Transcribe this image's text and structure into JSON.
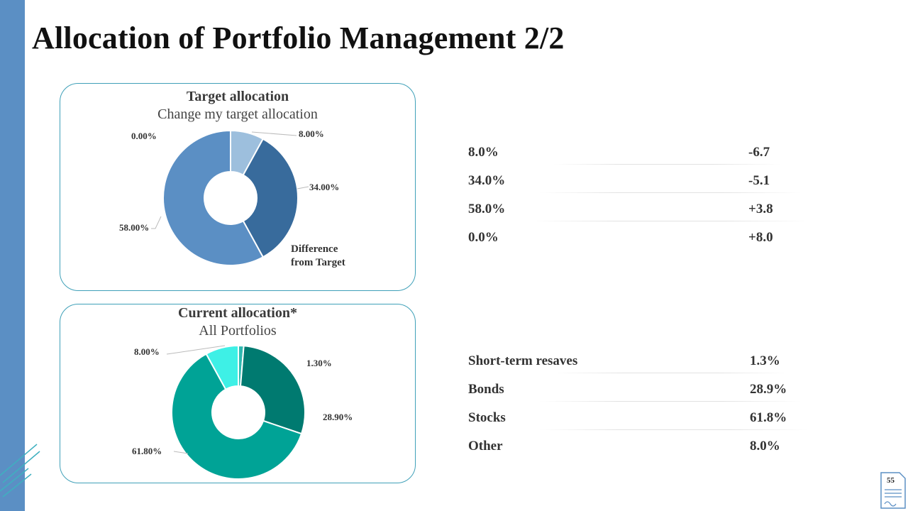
{
  "slide": {
    "title": "Allocation of Portfolio Management 2/2",
    "page_number": "55"
  },
  "colors": {
    "sidebar": "#5b8fc4",
    "card_border": "#3fa0b8",
    "target_slices": [
      "#9dbfdd",
      "#386b9c",
      "#5b8fc4",
      "#5b8fc4"
    ],
    "current_slices": [
      "#2fb8b0",
      "#007a70",
      "#00a396",
      "#3ef0e6"
    ]
  },
  "target_table": {
    "rows": [
      {
        "value": "8.0%",
        "diff": "-6.7"
      },
      {
        "value": "34.0%",
        "diff": "-5.1"
      },
      {
        "value": "58.0%",
        "diff": "+3.8"
      },
      {
        "value": "0.0%",
        "diff": "+8.0"
      }
    ]
  },
  "current_table": {
    "rows": [
      {
        "name": "Short-term resaves",
        "value": "1.3%"
      },
      {
        "name": "Bonds",
        "value": "28.9%"
      },
      {
        "name": "Stocks",
        "value": "61.8%"
      },
      {
        "name": "Other",
        "value": "8.0%"
      }
    ]
  },
  "chart_data": [
    {
      "type": "pie",
      "donut": true,
      "title": "Target allocation",
      "subtitle": "Change my target allocation",
      "annotation": [
        "Difference",
        "from Target"
      ],
      "values": [
        8.0,
        34.0,
        58.0,
        0.0
      ],
      "labels": [
        "8.00%",
        "34.00%",
        "58.00%",
        "0.00%"
      ]
    },
    {
      "type": "pie",
      "donut": true,
      "title": "Current allocation*",
      "subtitle": "All Portfolios",
      "categories": [
        "Short-term resaves",
        "Bonds",
        "Stocks",
        "Other"
      ],
      "values": [
        1.3,
        28.9,
        61.8,
        8.0
      ],
      "labels": [
        "1.30%",
        "28.90%",
        "61.80%",
        "8.00%"
      ]
    }
  ]
}
